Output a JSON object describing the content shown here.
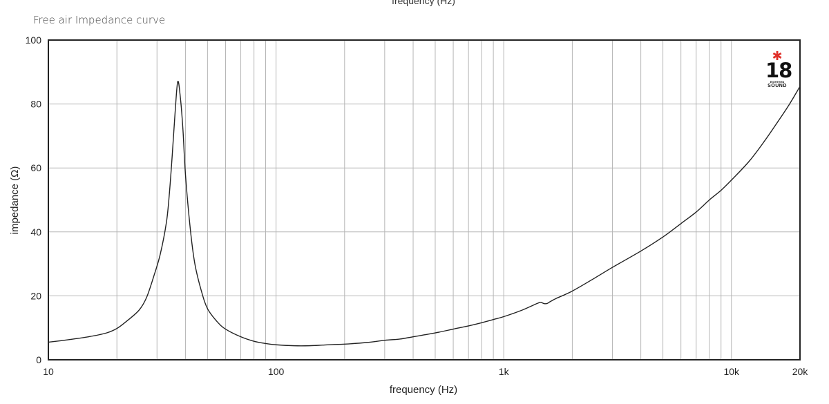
{
  "header": {
    "top_axis_label": "frequency (Hz)"
  },
  "logo": {
    "number": "18",
    "sub": "EIGHTEEN",
    "word": "SOUND",
    "accent_color": "#e0302a",
    "icon": "star-icon"
  },
  "chart_data": {
    "type": "line",
    "title": "Free air Impedance curve",
    "xlabel": "frequency (Hz)",
    "ylabel": "impedance (Ω)",
    "xscale": "log",
    "xlim": [
      10,
      20000
    ],
    "ylim": [
      0,
      100
    ],
    "grid": true,
    "x_ticks": [
      {
        "value": 10,
        "label": "10"
      },
      {
        "value": 100,
        "label": "100"
      },
      {
        "value": 1000,
        "label": "1k"
      },
      {
        "value": 10000,
        "label": "10k"
      },
      {
        "value": 20000,
        "label": "20k"
      }
    ],
    "y_ticks": [
      0,
      20,
      40,
      60,
      80,
      100
    ],
    "x_gridlines": [
      20,
      30,
      40,
      50,
      60,
      70,
      80,
      90,
      100,
      200,
      300,
      400,
      500,
      600,
      700,
      800,
      900,
      1000,
      2000,
      3000,
      4000,
      5000,
      6000,
      7000,
      8000,
      9000,
      10000
    ],
    "y_gridlines": [
      20,
      40,
      60,
      80
    ],
    "series": [
      {
        "color": "#222222",
        "x": [
          10,
          12,
          15,
          18,
          20,
          22,
          25,
          27,
          29,
          31,
          33,
          34,
          35,
          36,
          37,
          38,
          39,
          40,
          42,
          44,
          47,
          50,
          55,
          60,
          70,
          80,
          90,
          100,
          120,
          140,
          160,
          180,
          200,
          250,
          300,
          350,
          400,
          500,
          600,
          700,
          800,
          900,
          1000,
          1200,
          1400,
          1450,
          1500,
          1550,
          1600,
          1700,
          2000,
          2500,
          3000,
          4000,
          5000,
          6000,
          7000,
          8000,
          9000,
          10000,
          12000,
          14000,
          16000,
          18000,
          20000
        ],
        "y": [
          5.5,
          6.2,
          7.2,
          8.4,
          9.8,
          12,
          15.5,
          19.5,
          26,
          33,
          43,
          52,
          64,
          77,
          87,
          82,
          72,
          58,
          41,
          30,
          21.5,
          16,
          12,
          9.6,
          7.2,
          5.8,
          5.1,
          4.7,
          4.4,
          4.4,
          4.6,
          4.8,
          4.9,
          5.4,
          6.1,
          6.5,
          7.2,
          8.4,
          9.6,
          10.6,
          11.6,
          12.6,
          13.5,
          15.5,
          17.6,
          18,
          17.6,
          17.6,
          18.2,
          19.2,
          21.5,
          25.5,
          28.9,
          34,
          38.4,
          42.6,
          46.2,
          50,
          53,
          56.2,
          62.2,
          68.5,
          74.5,
          80,
          85.5
        ]
      }
    ]
  }
}
